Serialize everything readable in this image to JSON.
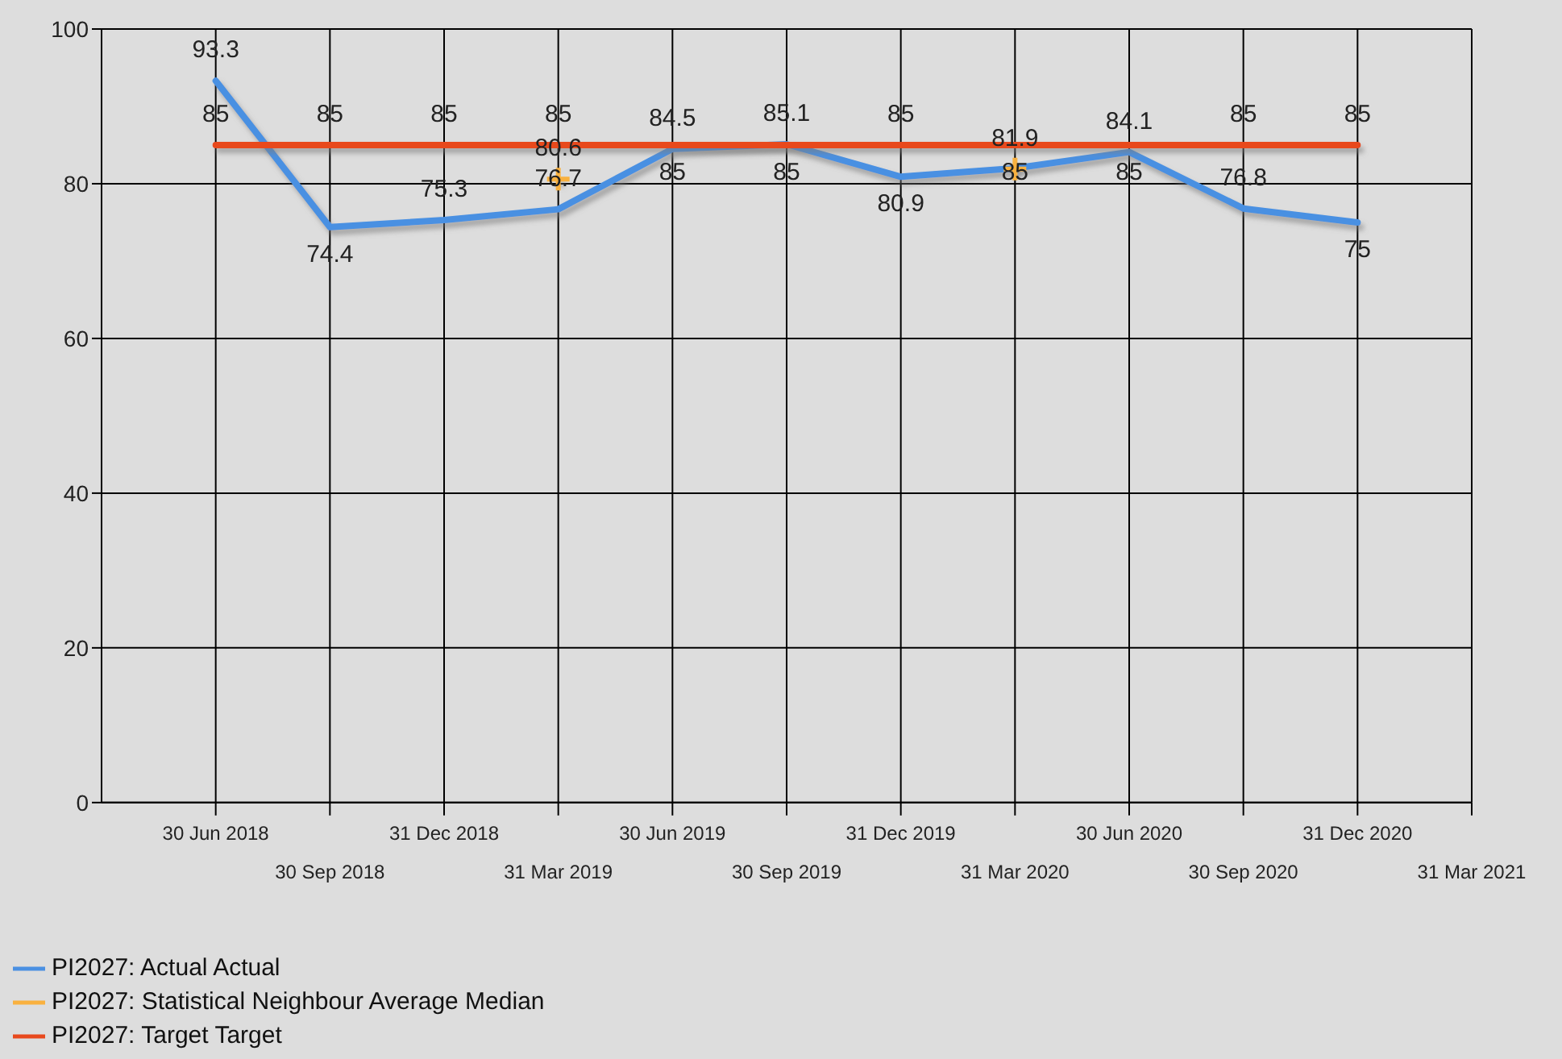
{
  "chart_data": {
    "type": "line",
    "categories": [
      "30 Jun 2018",
      "30 Sep 2018",
      "31 Dec 2018",
      "31 Mar 2019",
      "30 Jun 2019",
      "30 Sep 2019",
      "31 Dec 2019",
      "31 Mar 2020",
      "30 Jun 2020",
      "30 Sep 2020",
      "31 Dec 2020",
      "31 Mar 2021"
    ],
    "series": [
      {
        "name": "PI2027: Actual Actual",
        "color": "#4a90e2",
        "values": [
          93.3,
          74.4,
          75.3,
          76.7,
          84.5,
          85.1,
          80.9,
          82,
          84.1,
          76.8,
          75,
          null
        ],
        "value_labels": [
          "93.3",
          "74.4",
          "75.3",
          "76.7",
          "84.5",
          "85.1",
          "80.9",
          null,
          "84.1",
          "76.8",
          "75",
          null
        ]
      },
      {
        "name": "PI2027: Statistical Neighbour Average Median",
        "color": "#f9b13f",
        "marker": "cross",
        "values": [
          null,
          null,
          null,
          80.6,
          null,
          null,
          null,
          81.9,
          null,
          null,
          null,
          null
        ],
        "value_labels": [
          null,
          null,
          null,
          "80.6",
          null,
          null,
          null,
          "81.9",
          null,
          null,
          null,
          null
        ]
      },
      {
        "name": "PI2027: Target Target",
        "color": "#e8491d",
        "values": [
          85,
          85,
          85,
          85,
          85,
          85,
          85,
          85,
          85,
          85,
          85,
          null
        ],
        "value_labels": [
          "85",
          "85",
          "85",
          "85",
          "85",
          "85",
          "85",
          "85",
          "85",
          "85",
          "85",
          null
        ]
      }
    ],
    "ylim": [
      0,
      100
    ],
    "yticks": [
      0,
      20,
      40,
      60,
      80,
      100
    ],
    "grid": true,
    "legend": "bottom left"
  }
}
